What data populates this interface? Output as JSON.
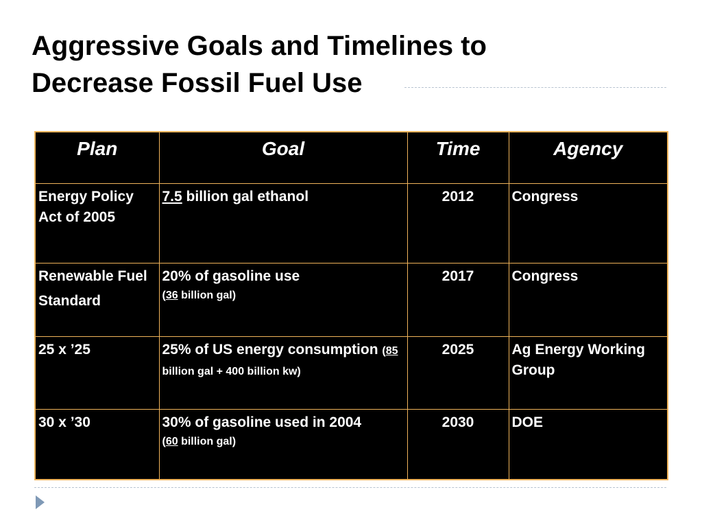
{
  "title": {
    "line1": "Aggressive Goals and Timelines to",
    "line2": "Decrease Fossil Fuel Use"
  },
  "table": {
    "headers": [
      "Plan",
      "Goal",
      "Time",
      "Agency"
    ],
    "rows": [
      {
        "plan": [
          "Energy Policy Act of 2005"
        ],
        "goal": {
          "num": "7.5",
          "text": " billion gal ethanol"
        },
        "time": "2012",
        "agency": "Congress"
      },
      {
        "plan": [
          "Renewable Fuel",
          "Standard"
        ],
        "goal": {
          "text": "20% of gasoline use",
          "paren_open": "(",
          "num": "36",
          "paren_rest": " billion gal)"
        },
        "time": "2017",
        "agency": "Congress"
      },
      {
        "plan": [
          "25 x ’25"
        ],
        "goal": {
          "text": "25% of US energy consumption ",
          "paren_open": "(",
          "num": "85",
          "paren_rest": " billion gal + 400 billion kw)"
        },
        "time": "2025",
        "agency": "Ag Energy Working Group"
      },
      {
        "plan": [
          "30 x ’30"
        ],
        "goal": {
          "text": "30% of gasoline used in 2004",
          "paren_open": "(",
          "num": "60",
          "paren_rest": " billion gal)"
        },
        "time": "2030",
        "agency": "DOE"
      }
    ]
  },
  "icons": {
    "bullet": "triangle-bullet-icon"
  }
}
